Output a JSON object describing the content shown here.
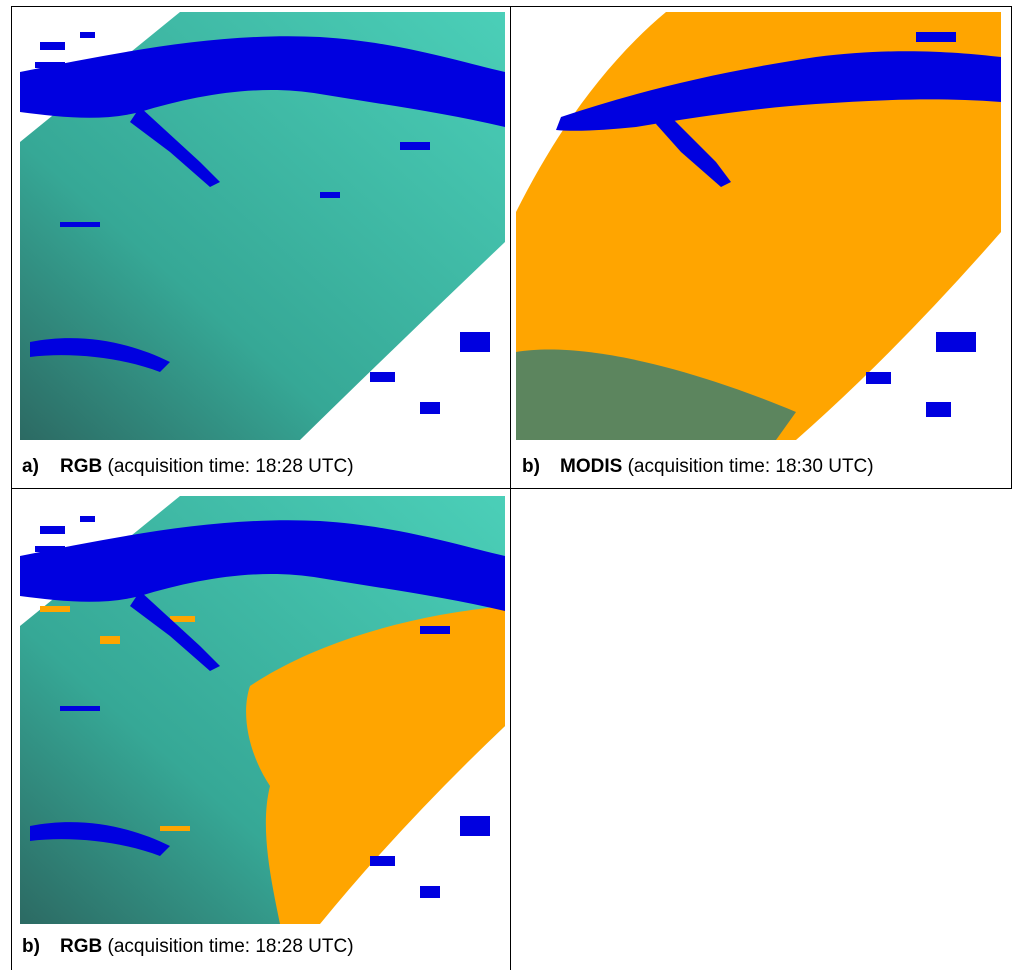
{
  "figure": {
    "panels": [
      {
        "label": "a)",
        "title": "RGB",
        "detail": "(acquisition time: 18:28 UTC)"
      },
      {
        "label": "b)",
        "title": "MODIS",
        "detail": "(acquisition time: 18:30 UTC)"
      },
      {
        "label": "b)",
        "title": "RGB",
        "detail": "(acquisition time: 18:28 UTC)"
      }
    ]
  }
}
